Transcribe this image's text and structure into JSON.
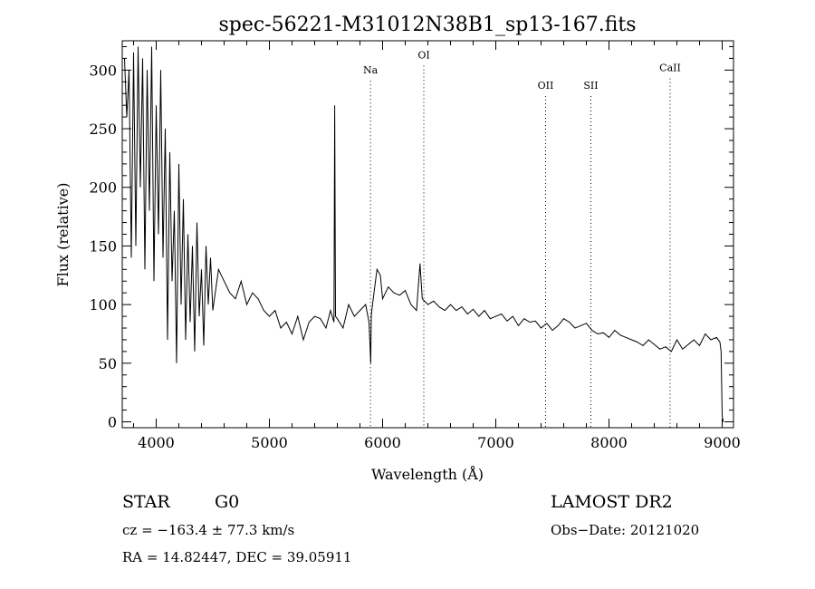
{
  "chart_data": {
    "type": "line",
    "title": "spec-56221-M31012N38B1_sp13-167.fits",
    "xlabel": "Wavelength (Å)",
    "ylabel": "Flux (relative)",
    "xlim": [
      3700,
      9100
    ],
    "ylim": [
      -5,
      325
    ],
    "x_ticks": [
      4000,
      5000,
      6000,
      7000,
      8000,
      9000
    ],
    "y_ticks": [
      0,
      50,
      100,
      150,
      200,
      250,
      300
    ],
    "grid": false,
    "series": [
      {
        "x": [
          3720,
          3740,
          3760,
          3780,
          3800,
          3820,
          3840,
          3860,
          3880,
          3900,
          3920,
          3940,
          3960,
          3980,
          4000,
          4020,
          4040,
          4060,
          4080,
          4100,
          4120,
          4140,
          4160,
          4180,
          4200,
          4220,
          4240,
          4260,
          4280,
          4300,
          4320,
          4340,
          4360,
          4380,
          4400,
          4420,
          4440,
          4460,
          4480,
          4500,
          4550,
          4600,
          4650,
          4700,
          4750,
          4800,
          4850,
          4900,
          4950,
          5000,
          5050,
          5100,
          5150,
          5200,
          5250,
          5300,
          5350,
          5400,
          5450,
          5500,
          5540,
          5570,
          5577,
          5584,
          5600,
          5650,
          5700,
          5750,
          5800,
          5850,
          5880,
          5895,
          5900,
          5905,
          5930,
          5950,
          5980,
          6000,
          6050,
          6100,
          6150,
          6200,
          6250,
          6300,
          6330,
          6350,
          6400,
          6450,
          6500,
          6550,
          6600,
          6650,
          6700,
          6750,
          6800,
          6850,
          6900,
          6950,
          7000,
          7050,
          7100,
          7150,
          7200,
          7250,
          7300,
          7350,
          7400,
          7450,
          7500,
          7550,
          7600,
          7650,
          7700,
          7750,
          7800,
          7850,
          7900,
          7950,
          8000,
          8050,
          8100,
          8150,
          8200,
          8250,
          8300,
          8350,
          8400,
          8450,
          8500,
          8550,
          8600,
          8650,
          8700,
          8750,
          8800,
          8850,
          8900,
          8950,
          8980,
          8990,
          9000,
          9010
        ],
        "y": [
          310,
          260,
          300,
          140,
          315,
          150,
          320,
          200,
          310,
          130,
          300,
          180,
          320,
          120,
          270,
          160,
          300,
          140,
          250,
          70,
          230,
          120,
          180,
          50,
          220,
          100,
          190,
          70,
          160,
          85,
          150,
          60,
          170,
          90,
          130,
          65,
          150,
          100,
          140,
          95,
          130,
          120,
          110,
          105,
          120,
          100,
          110,
          105,
          95,
          90,
          95,
          80,
          85,
          75,
          90,
          70,
          85,
          90,
          88,
          80,
          95,
          85,
          270,
          90,
          88,
          80,
          100,
          90,
          95,
          100,
          85,
          50,
          90,
          95,
          115,
          130,
          125,
          105,
          115,
          110,
          108,
          112,
          100,
          95,
          135,
          105,
          100,
          103,
          98,
          95,
          100,
          95,
          98,
          92,
          96,
          90,
          95,
          88,
          90,
          92,
          86,
          90,
          82,
          88,
          85,
          86,
          80,
          84,
          78,
          82,
          88,
          85,
          80,
          82,
          84,
          78,
          75,
          76,
          72,
          78,
          74,
          72,
          70,
          68,
          65,
          70,
          66,
          62,
          64,
          60,
          70,
          62,
          66,
          70,
          65,
          75,
          70,
          72,
          68,
          60,
          5,
          0
        ]
      }
    ],
    "annotations": [
      {
        "label": "Na",
        "x": 5893,
        "label_y": 297
      },
      {
        "label": "OI",
        "x": 6364,
        "label_y": 310
      },
      {
        "label": "OII",
        "x": 7440,
        "label_y": 284
      },
      {
        "label": "SII",
        "x": 7840,
        "label_y": 284
      },
      {
        "label": "CaII",
        "x": 8540,
        "label_y": 299
      }
    ]
  },
  "footer": {
    "class_label": "STAR",
    "subclass": "G0",
    "survey": "LAMOST DR2",
    "cz_line": "cz = −163.4 ± 77.3 km/s",
    "obs_date": "Obs−Date: 20121020",
    "coords": "RA =  14.82447, DEC =  39.05911"
  }
}
